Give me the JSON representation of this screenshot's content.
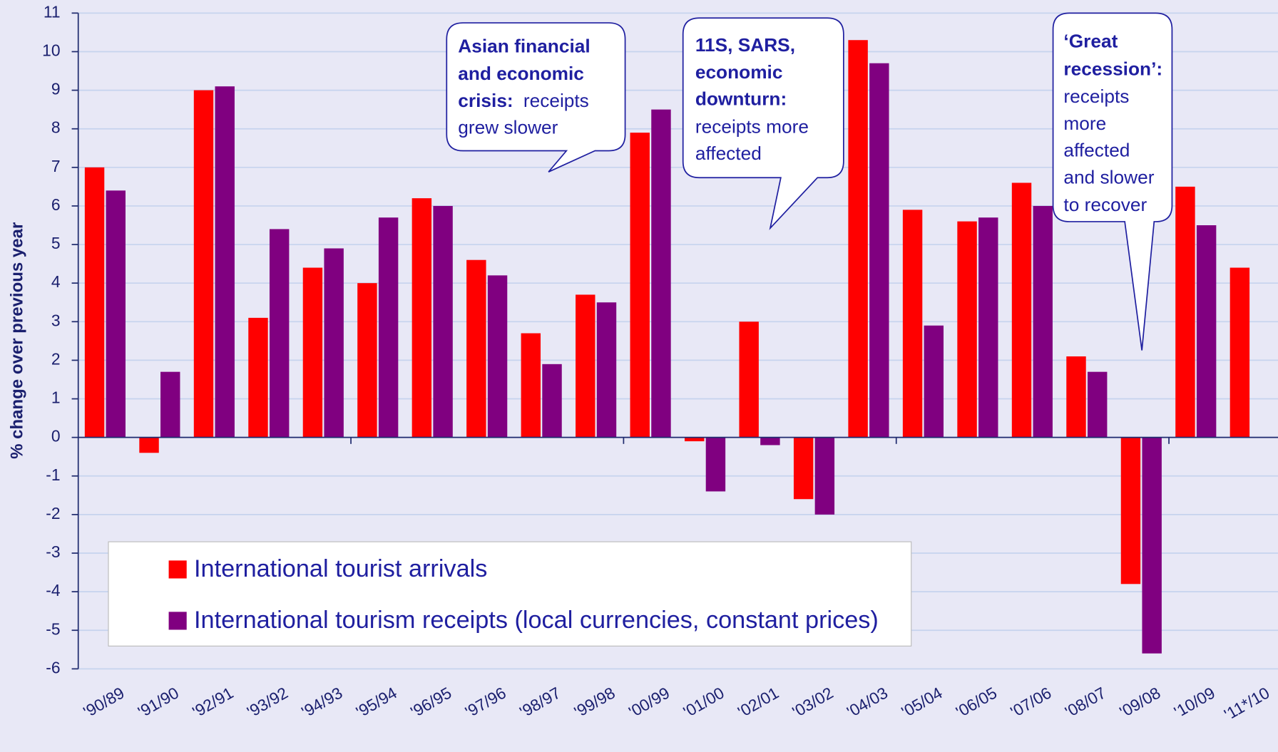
{
  "chart_data": {
    "type": "bar",
    "y_label": "% change over previous year",
    "categories": [
      "'90/89",
      "'91/90",
      "'92/91",
      "'93/92",
      "'94/93",
      "'95/94",
      "'96/95",
      "'97/96",
      "'98/97",
      "'99/98",
      "'00/99",
      "'01/00",
      "'02/01",
      "'03/02",
      "'04/03",
      "'05/04",
      "'06/05",
      "'07/06",
      "'08/07",
      "'09/08",
      "'10/09",
      "'11*/10"
    ],
    "series": [
      {
        "name": "International tourist arrivals",
        "color": "#ff0000",
        "values": [
          7.0,
          -0.4,
          9.0,
          3.1,
          4.4,
          4.0,
          6.2,
          4.6,
          2.7,
          3.7,
          7.9,
          -0.1,
          3.0,
          -1.6,
          10.3,
          5.9,
          5.6,
          6.6,
          2.1,
          -3.8,
          6.5,
          4.4
        ]
      },
      {
        "name": "International tourism receipts (local currencies, constant prices)",
        "color": "#800080",
        "values": [
          6.4,
          1.7,
          9.1,
          5.4,
          4.9,
          5.7,
          6.0,
          4.2,
          1.9,
          3.5,
          8.5,
          -1.4,
          -0.2,
          -2.0,
          9.7,
          2.9,
          5.7,
          6.0,
          1.7,
          -5.6,
          5.5,
          null
        ]
      }
    ],
    "ylim": [
      -6,
      11
    ],
    "yticks": [
      -6,
      -5,
      -4,
      -3,
      -2,
      -1,
      0,
      1,
      2,
      3,
      4,
      5,
      6,
      7,
      8,
      9,
      10,
      11
    ],
    "grid": true,
    "annotations": [
      {
        "bold": [
          "Asian financial",
          "and economic",
          "crisis:"
        ],
        "text": [
          "receipts",
          "grew slower"
        ]
      },
      {
        "bold": [
          "11S, SARS,",
          "economic",
          "downturn:"
        ],
        "text": [
          "receipts more",
          "affected"
        ]
      },
      {
        "bold": [
          "‘Great",
          "recession’:"
        ],
        "text": [
          "receipts",
          "more",
          "affected",
          "and slower",
          "to recover"
        ]
      }
    ]
  }
}
